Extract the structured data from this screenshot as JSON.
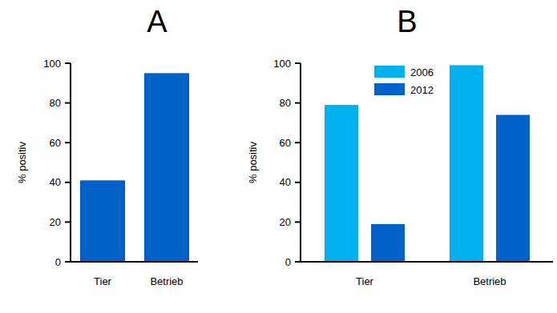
{
  "chart_data": [
    {
      "type": "bar",
      "title": "A",
      "y_label": "% positiv",
      "categories": [
        "Tier",
        "Betrieb"
      ],
      "values": [
        41,
        95
      ],
      "color": "#0062c9",
      "ylim": [
        0,
        100
      ],
      "yticks": [
        0,
        20,
        40,
        60,
        80,
        100
      ]
    },
    {
      "type": "bar",
      "title": "B",
      "y_label": "% positiv",
      "categories": [
        "Tier",
        "Betrieb"
      ],
      "series": [
        {
          "name": "2006",
          "color": "#00b1f0",
          "values": [
            79,
            99
          ]
        },
        {
          "name": "2012",
          "color": "#0062c9",
          "values": [
            19,
            74
          ]
        }
      ],
      "legend": "top",
      "ylim": [
        0,
        100
      ],
      "yticks": [
        0,
        20,
        40,
        60,
        80,
        100
      ]
    }
  ]
}
